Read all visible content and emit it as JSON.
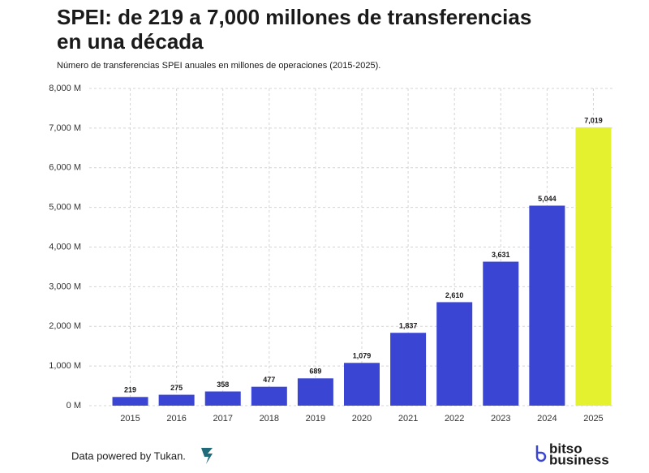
{
  "chart_data": {
    "type": "bar",
    "title": [
      "SPEI: de 219 a 7,000 millones de transferencias",
      "en una década"
    ],
    "subtitle": "Número de transferencias SPEI anuales en millones de operaciones (2015-2025).",
    "categories": [
      "2015",
      "2016",
      "2017",
      "2018",
      "2019",
      "2020",
      "2021",
      "2022",
      "2023",
      "2024",
      "2025"
    ],
    "values": [
      219,
      275,
      358,
      477,
      689,
      1079,
      1837,
      2610,
      3631,
      5044,
      7019
    ],
    "value_labels": [
      "219",
      "275",
      "358",
      "477",
      "689",
      "1,079",
      "1,837",
      "2,610",
      "3,631",
      "5,044",
      "7,019"
    ],
    "colors": [
      "#3a45d4",
      "#3a45d4",
      "#3a45d4",
      "#3a45d4",
      "#3a45d4",
      "#3a45d4",
      "#3a45d4",
      "#3a45d4",
      "#3a45d4",
      "#3a45d4",
      "#e3f12f"
    ],
    "ylim": [
      0,
      8000
    ],
    "yticks": [
      {
        "value": 0,
        "label": "0 M"
      },
      {
        "value": 1000,
        "label": "1,000 M"
      },
      {
        "value": 2000,
        "label": "2,000 M"
      },
      {
        "value": 3000,
        "label": "3,000 M"
      },
      {
        "value": 4000,
        "label": "4,000 M"
      },
      {
        "value": 5000,
        "label": "5,000 M"
      },
      {
        "value": 6000,
        "label": "6,000 M"
      },
      {
        "value": 7000,
        "label": "7,000 M"
      },
      {
        "value": 8000,
        "label": "8,000 M"
      }
    ],
    "grid": true
  },
  "footer": {
    "source": "Data powered by Tukan.",
    "brand": [
      "bitso",
      "business"
    ]
  }
}
